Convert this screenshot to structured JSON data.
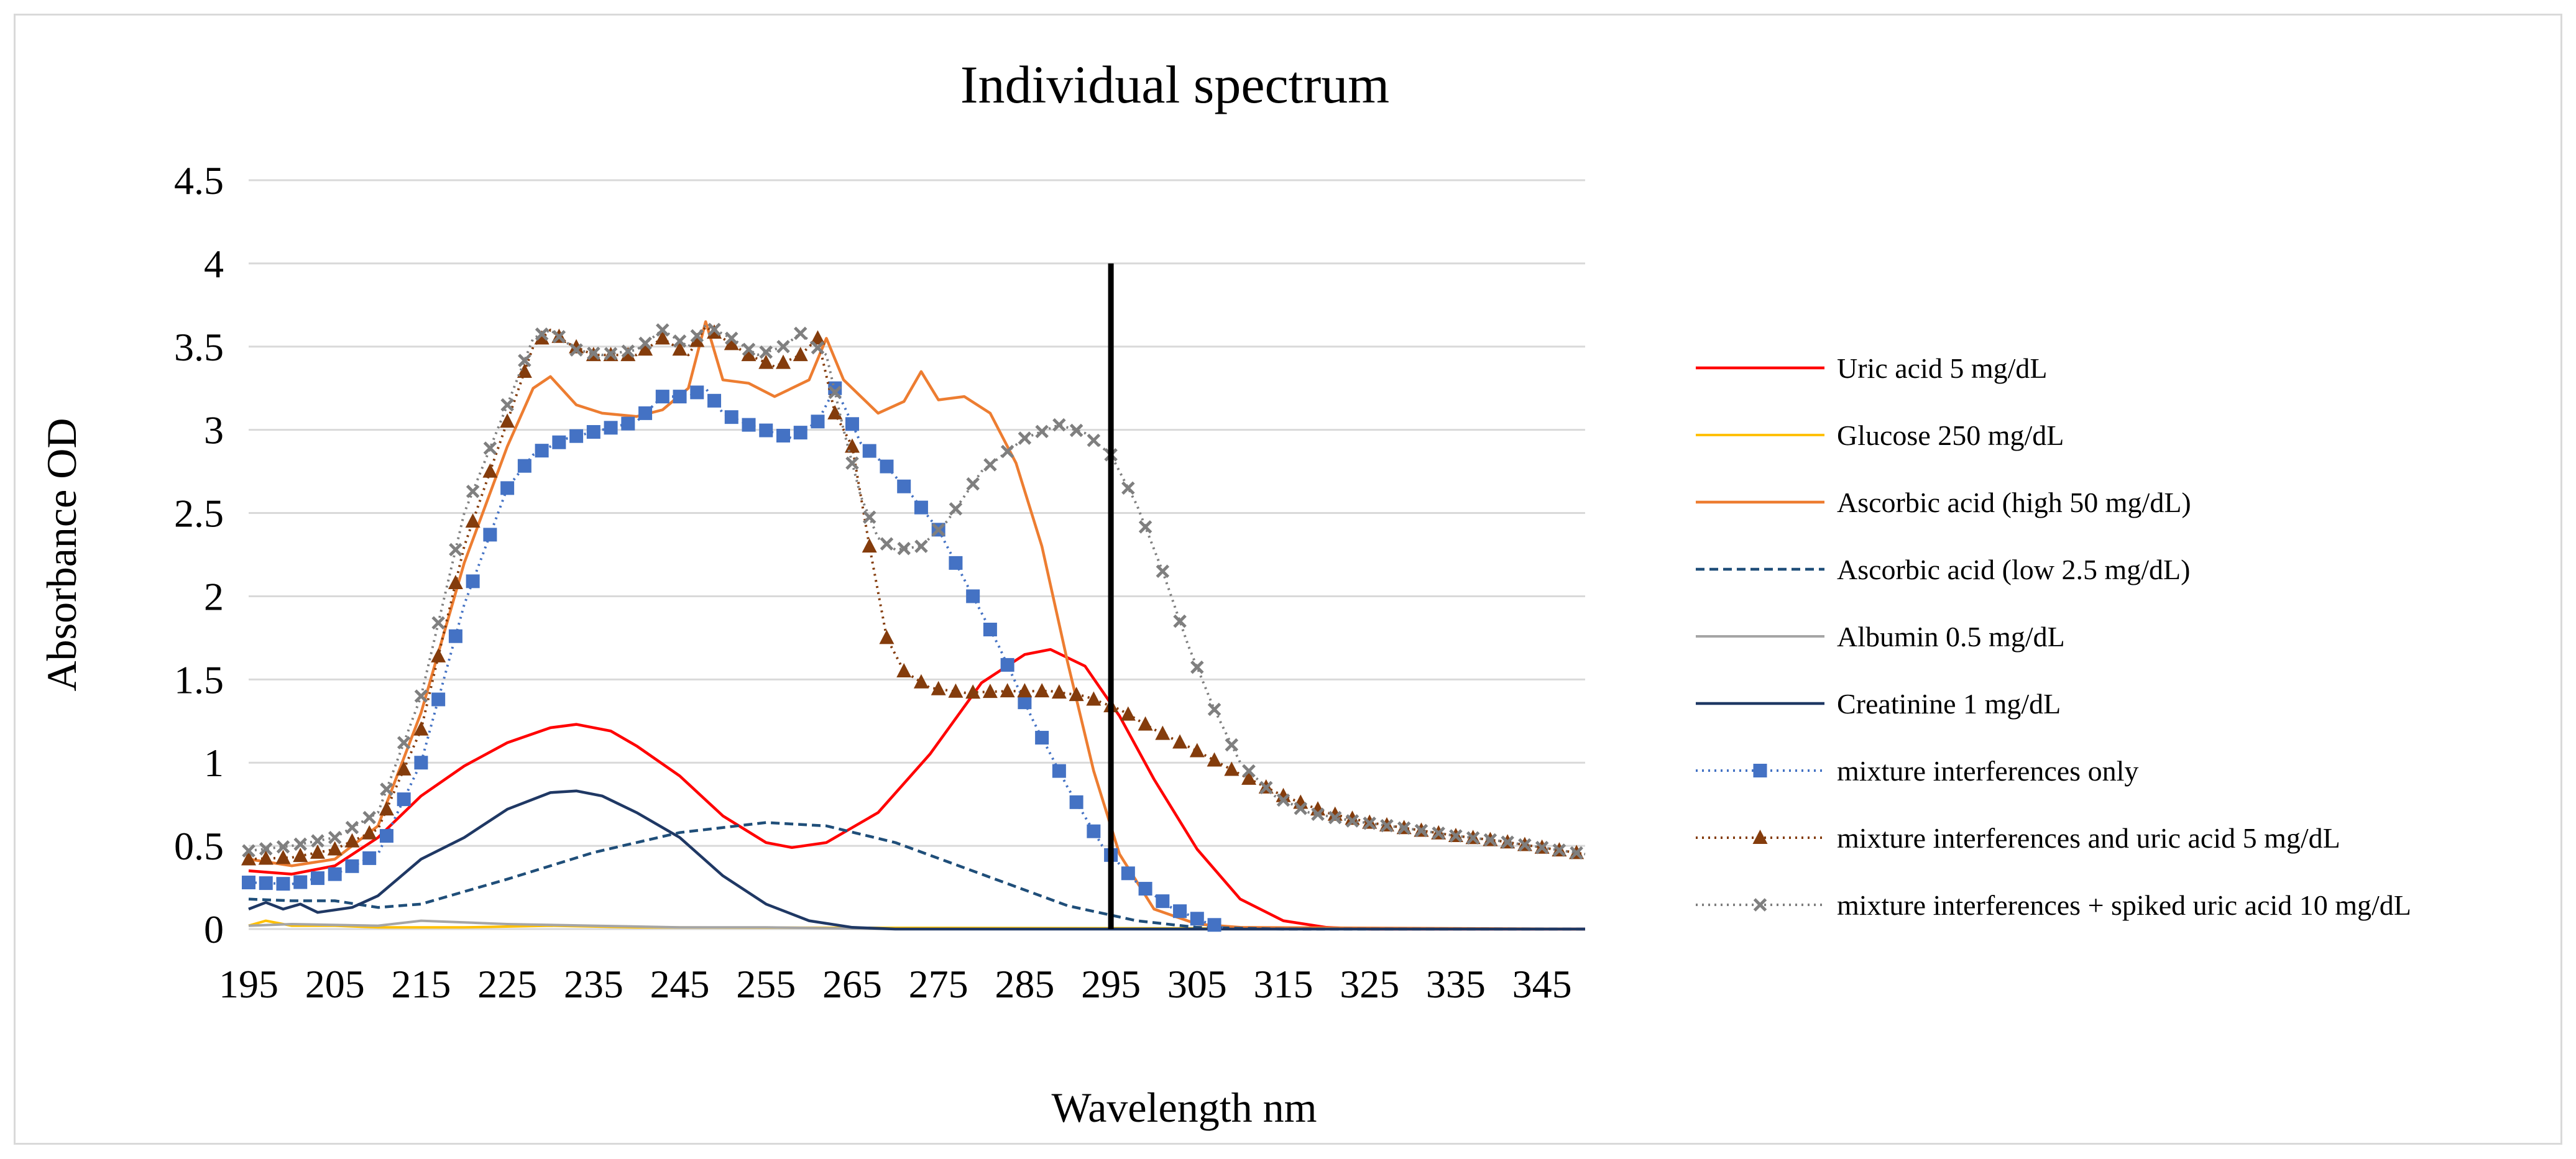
{
  "chart_data": {
    "type": "line",
    "title": "Individual spectrum",
    "xlabel": "Wavelength nm",
    "ylabel": "Absorbance OD",
    "xlim": [
      195,
      350
    ],
    "ylim": [
      0,
      4.5
    ],
    "yticks": [
      "0",
      "0.5",
      "1",
      "1.5",
      "2",
      "2.5",
      "3",
      "3.5",
      "4",
      "4.5"
    ],
    "xticks": [
      "195",
      "205",
      "215",
      "225",
      "235",
      "245",
      "255",
      "265",
      "275",
      "285",
      "295",
      "305",
      "315",
      "325",
      "335",
      "345"
    ],
    "gridlines": "horizontal",
    "legend_position": "right",
    "vertical_marker": {
      "x": 295,
      "y_from": 0,
      "y_to": 4
    },
    "series": [
      {
        "name": "Uric acid 5 mg/dL",
        "color": "#ff0000",
        "dash": "",
        "width": 4.5,
        "marker": "none",
        "points": [
          [
            195,
            0.35
          ],
          [
            200,
            0.33
          ],
          [
            205,
            0.38
          ],
          [
            210,
            0.55
          ],
          [
            215,
            0.8
          ],
          [
            220,
            0.98
          ],
          [
            225,
            1.12
          ],
          [
            230,
            1.21
          ],
          [
            233,
            1.23
          ],
          [
            237,
            1.19
          ],
          [
            240,
            1.1
          ],
          [
            245,
            0.92
          ],
          [
            250,
            0.68
          ],
          [
            255,
            0.52
          ],
          [
            258,
            0.49
          ],
          [
            262,
            0.52
          ],
          [
            268,
            0.7
          ],
          [
            274,
            1.05
          ],
          [
            280,
            1.48
          ],
          [
            285,
            1.65
          ],
          [
            288,
            1.68
          ],
          [
            292,
            1.58
          ],
          [
            296,
            1.28
          ],
          [
            300,
            0.9
          ],
          [
            305,
            0.48
          ],
          [
            310,
            0.18
          ],
          [
            315,
            0.05
          ],
          [
            320,
            0.01
          ],
          [
            325,
            0
          ],
          [
            350,
            0
          ]
        ]
      },
      {
        "name": "Glucose 250 mg/dL",
        "color": "#ffc000",
        "dash": "",
        "width": 4,
        "marker": "none",
        "points": [
          [
            195,
            0.02
          ],
          [
            197,
            0.05
          ],
          [
            200,
            0.02
          ],
          [
            205,
            0.02
          ],
          [
            210,
            0.01
          ],
          [
            220,
            0.01
          ],
          [
            230,
            0.02
          ],
          [
            240,
            0.01
          ],
          [
            350,
            0
          ]
        ]
      },
      {
        "name": "Ascorbic acid (high 50 mg/dL)",
        "color": "#ed7d31",
        "dash": "",
        "width": 4.5,
        "marker": "none",
        "points": [
          [
            195,
            0.42
          ],
          [
            200,
            0.38
          ],
          [
            205,
            0.42
          ],
          [
            210,
            0.62
          ],
          [
            215,
            1.3
          ],
          [
            220,
            2.2
          ],
          [
            225,
            2.9
          ],
          [
            228,
            3.25
          ],
          [
            230,
            3.32
          ],
          [
            233,
            3.15
          ],
          [
            236,
            3.1
          ],
          [
            240,
            3.08
          ],
          [
            243,
            3.12
          ],
          [
            246,
            3.25
          ],
          [
            248,
            3.65
          ],
          [
            250,
            3.3
          ],
          [
            253,
            3.28
          ],
          [
            256,
            3.2
          ],
          [
            260,
            3.3
          ],
          [
            262,
            3.55
          ],
          [
            264,
            3.3
          ],
          [
            268,
            3.1
          ],
          [
            271,
            3.17
          ],
          [
            273,
            3.35
          ],
          [
            275,
            3.18
          ],
          [
            278,
            3.2
          ],
          [
            281,
            3.1
          ],
          [
            284,
            2.8
          ],
          [
            287,
            2.3
          ],
          [
            290,
            1.6
          ],
          [
            293,
            0.95
          ],
          [
            296,
            0.45
          ],
          [
            300,
            0.12
          ],
          [
            305,
            0.03
          ],
          [
            310,
            0.01
          ],
          [
            350,
            0
          ]
        ]
      },
      {
        "name": "Ascorbic acid (low 2.5 mg/dL)",
        "color": "#1f4e79",
        "dash": "14,8",
        "width": 4.5,
        "marker": "none",
        "points": [
          [
            195,
            0.18
          ],
          [
            200,
            0.17
          ],
          [
            205,
            0.17
          ],
          [
            210,
            0.13
          ],
          [
            215,
            0.15
          ],
          [
            225,
            0.3
          ],
          [
            235,
            0.46
          ],
          [
            245,
            0.58
          ],
          [
            255,
            0.64
          ],
          [
            262,
            0.62
          ],
          [
            270,
            0.52
          ],
          [
            280,
            0.33
          ],
          [
            290,
            0.14
          ],
          [
            298,
            0.05
          ],
          [
            305,
            0.01
          ],
          [
            315,
            0
          ],
          [
            350,
            0
          ]
        ]
      },
      {
        "name": "Albumin 0.5 mg/dL",
        "color": "#a5a5a5",
        "dash": "",
        "width": 4,
        "marker": "none",
        "points": [
          [
            195,
            0.02
          ],
          [
            200,
            0.03
          ],
          [
            210,
            0.02
          ],
          [
            215,
            0.05
          ],
          [
            225,
            0.03
          ],
          [
            235,
            0.02
          ],
          [
            245,
            0.01
          ],
          [
            255,
            0.01
          ],
          [
            270,
            0
          ],
          [
            350,
            0
          ]
        ]
      },
      {
        "name": "Creatinine 1 mg/dL",
        "color": "#1f3864",
        "dash": "",
        "width": 4.5,
        "marker": "none",
        "points": [
          [
            195,
            0.12
          ],
          [
            197,
            0.16
          ],
          [
            199,
            0.12
          ],
          [
            201,
            0.15
          ],
          [
            203,
            0.1
          ],
          [
            207,
            0.13
          ],
          [
            210,
            0.2
          ],
          [
            215,
            0.42
          ],
          [
            220,
            0.55
          ],
          [
            225,
            0.72
          ],
          [
            230,
            0.82
          ],
          [
            233,
            0.83
          ],
          [
            236,
            0.8
          ],
          [
            240,
            0.7
          ],
          [
            245,
            0.55
          ],
          [
            250,
            0.32
          ],
          [
            255,
            0.15
          ],
          [
            260,
            0.05
          ],
          [
            265,
            0.01
          ],
          [
            270,
            0
          ],
          [
            350,
            0
          ]
        ]
      },
      {
        "name": "mixture interferences only",
        "color": "#4472c4",
        "dash": "3,7",
        "width": 4,
        "marker": "square",
        "points": [
          [
            195,
            0.28
          ],
          [
            200,
            0.27
          ],
          [
            205,
            0.33
          ],
          [
            210,
            0.45
          ],
          [
            215,
            1.0
          ],
          [
            220,
            1.95
          ],
          [
            225,
            2.65
          ],
          [
            228,
            2.85
          ],
          [
            232,
            2.95
          ],
          [
            236,
            3.0
          ],
          [
            240,
            3.05
          ],
          [
            243,
            3.2
          ],
          [
            246,
            3.2
          ],
          [
            248,
            3.25
          ],
          [
            250,
            3.1
          ],
          [
            253,
            3.03
          ],
          [
            256,
            2.98
          ],
          [
            258,
            2.95
          ],
          [
            261,
            3.05
          ],
          [
            263,
            3.25
          ],
          [
            264,
            3.15
          ],
          [
            266,
            2.92
          ],
          [
            269,
            2.78
          ],
          [
            272,
            2.6
          ],
          [
            275,
            2.4
          ],
          [
            278,
            2.1
          ],
          [
            282,
            1.7
          ],
          [
            286,
            1.25
          ],
          [
            290,
            0.85
          ],
          [
            294,
            0.5
          ],
          [
            298,
            0.28
          ],
          [
            302,
            0.13
          ],
          [
            306,
            0.04
          ],
          [
            308,
            0.01
          ]
        ]
      },
      {
        "name": "mixture interferences and uric acid 5 mg/dL",
        "color": "#843c0c",
        "dash": "3,7",
        "width": 4,
        "marker": "triangle",
        "points": [
          [
            195,
            0.42
          ],
          [
            200,
            0.43
          ],
          [
            205,
            0.48
          ],
          [
            210,
            0.6
          ],
          [
            215,
            1.2
          ],
          [
            220,
            2.3
          ],
          [
            225,
            3.05
          ],
          [
            228,
            3.5
          ],
          [
            230,
            3.6
          ],
          [
            232,
            3.52
          ],
          [
            235,
            3.45
          ],
          [
            240,
            3.45
          ],
          [
            243,
            3.55
          ],
          [
            246,
            3.45
          ],
          [
            248,
            3.62
          ],
          [
            250,
            3.55
          ],
          [
            253,
            3.45
          ],
          [
            256,
            3.38
          ],
          [
            259,
            3.45
          ],
          [
            261,
            3.55
          ],
          [
            263,
            3.1
          ],
          [
            265,
            2.9
          ],
          [
            267,
            2.3
          ],
          [
            269,
            1.75
          ],
          [
            271,
            1.55
          ],
          [
            274,
            1.45
          ],
          [
            278,
            1.42
          ],
          [
            283,
            1.43
          ],
          [
            288,
            1.43
          ],
          [
            292,
            1.4
          ],
          [
            296,
            1.32
          ],
          [
            300,
            1.2
          ],
          [
            305,
            1.07
          ],
          [
            310,
            0.93
          ],
          [
            315,
            0.8
          ],
          [
            320,
            0.7
          ],
          [
            325,
            0.64
          ],
          [
            330,
            0.6
          ],
          [
            335,
            0.56
          ],
          [
            340,
            0.53
          ],
          [
            345,
            0.49
          ],
          [
            350,
            0.45
          ]
        ]
      },
      {
        "name": "mixture interferences + spiked uric acid 10 mg/dL",
        "color": "#7f7f7f",
        "dash": "3,7",
        "width": 4,
        "marker": "x",
        "points": [
          [
            195,
            0.47
          ],
          [
            200,
            0.5
          ],
          [
            205,
            0.55
          ],
          [
            210,
            0.7
          ],
          [
            215,
            1.4
          ],
          [
            220,
            2.5
          ],
          [
            225,
            3.15
          ],
          [
            228,
            3.55
          ],
          [
            230,
            3.6
          ],
          [
            233,
            3.48
          ],
          [
            236,
            3.45
          ],
          [
            240,
            3.48
          ],
          [
            243,
            3.6
          ],
          [
            246,
            3.5
          ],
          [
            248,
            3.63
          ],
          [
            251,
            3.55
          ],
          [
            254,
            3.45
          ],
          [
            257,
            3.5
          ],
          [
            259,
            3.58
          ],
          [
            262,
            3.45
          ],
          [
            264,
            3.0
          ],
          [
            266,
            2.6
          ],
          [
            268,
            2.35
          ],
          [
            270,
            2.28
          ],
          [
            273,
            2.3
          ],
          [
            276,
            2.45
          ],
          [
            280,
            2.75
          ],
          [
            285,
            2.95
          ],
          [
            289,
            3.03
          ],
          [
            292,
            2.98
          ],
          [
            295,
            2.85
          ],
          [
            298,
            2.55
          ],
          [
            301,
            2.15
          ],
          [
            304,
            1.7
          ],
          [
            307,
            1.32
          ],
          [
            310,
            1.0
          ],
          [
            314,
            0.8
          ],
          [
            318,
            0.7
          ],
          [
            323,
            0.65
          ],
          [
            330,
            0.6
          ],
          [
            335,
            0.56
          ],
          [
            340,
            0.53
          ],
          [
            345,
            0.49
          ],
          [
            350,
            0.45
          ]
        ]
      }
    ]
  }
}
